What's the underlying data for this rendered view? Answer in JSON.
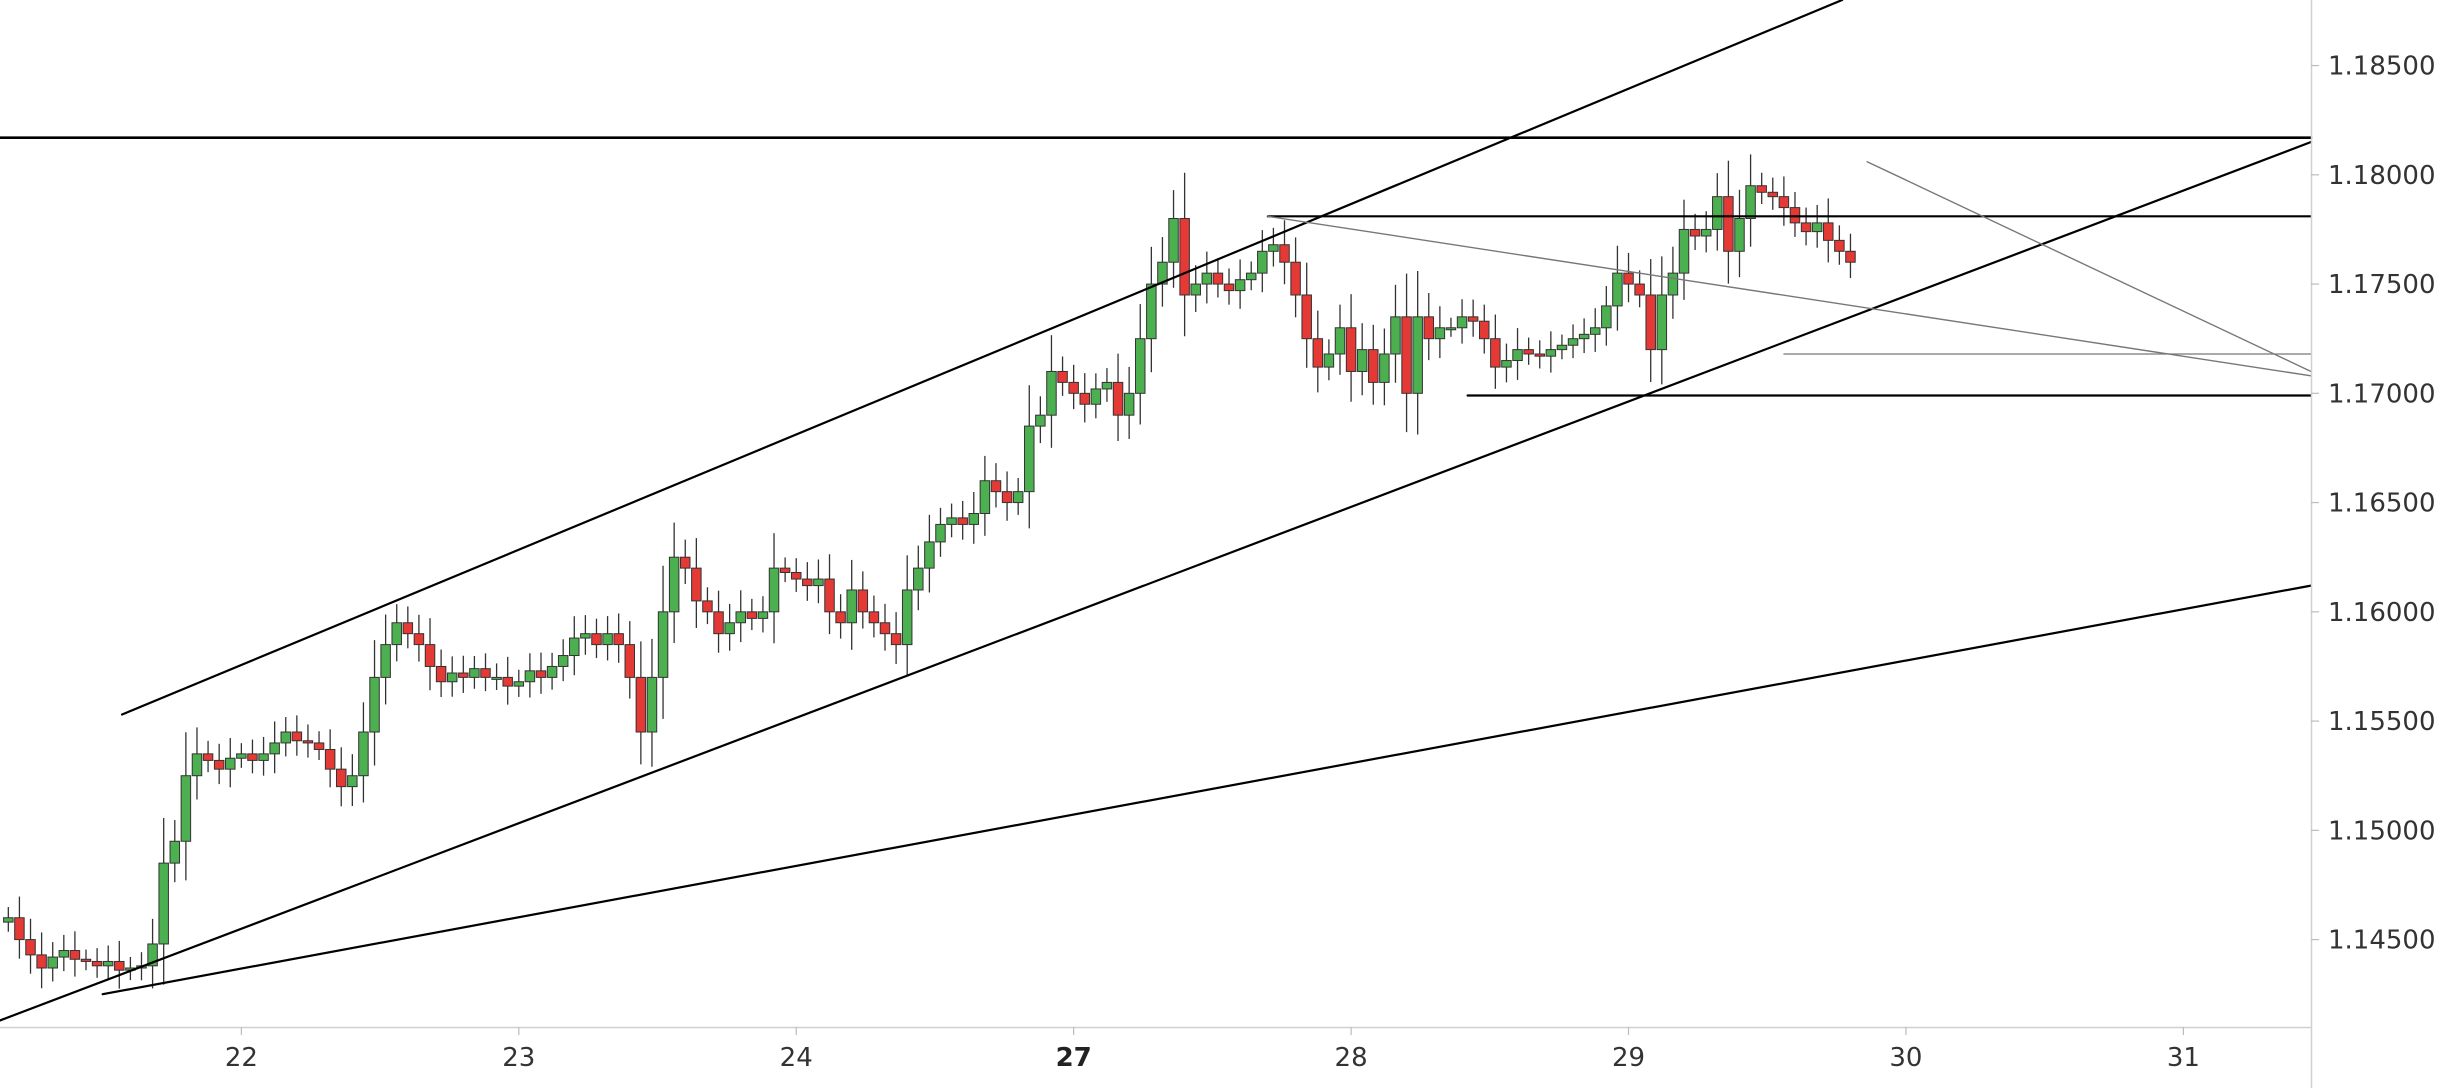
{
  "chart_data": {
    "type": "candlestick",
    "x_ticks": [
      {
        "label": "22",
        "pos": 1.0,
        "bold": false
      },
      {
        "label": "23",
        "pos": 2.0,
        "bold": false
      },
      {
        "label": "24",
        "pos": 3.0,
        "bold": false
      },
      {
        "label": "27",
        "pos": 4.0,
        "bold": true
      },
      {
        "label": "28",
        "pos": 5.0,
        "bold": false
      },
      {
        "label": "29",
        "pos": 6.0,
        "bold": false
      },
      {
        "label": "30",
        "pos": 7.0,
        "bold": false
      },
      {
        "label": "31",
        "pos": 8.0,
        "bold": false
      }
    ],
    "y_ticks": [
      "1.14500",
      "1.15000",
      "1.15500",
      "1.16000",
      "1.16500",
      "1.17000",
      "1.17500",
      "1.18000",
      "1.18500"
    ],
    "y_tick_values": [
      1.145,
      1.15,
      1.155,
      1.16,
      1.165,
      1.17,
      1.175,
      1.18,
      1.185
    ],
    "xlim": [
      0.13,
      8.46
    ],
    "ylim": [
      1.141,
      1.188
    ],
    "colors": {
      "up": "#4caf50",
      "down": "#e53935",
      "wick": "#333333",
      "line": "#000000",
      "thin_line": "#777777"
    },
    "candles": {
      "x0": 0.16,
      "step": 0.04,
      "open": [
        1.1458,
        1.146,
        1.145,
        1.1443,
        1.1437,
        1.1442,
        1.1445,
        1.1441,
        1.144,
        1.1438,
        1.144,
        1.1436,
        1.1437,
        1.1438,
        1.1448,
        1.1485,
        1.1495,
        1.1525,
        1.1535,
        1.1532,
        1.1528,
        1.1533,
        1.1535,
        1.1532,
        1.1535,
        1.154,
        1.1545,
        1.1541,
        1.154,
        1.1537,
        1.1528,
        1.152,
        1.1525,
        1.1545,
        1.157,
        1.1585,
        1.1595,
        1.159,
        1.1585,
        1.1575,
        1.1568,
        1.1572,
        1.157,
        1.1574,
        1.157,
        1.157,
        1.1566,
        1.1568,
        1.1573,
        1.157,
        1.1575,
        1.158,
        1.1588,
        1.159,
        1.1585,
        1.159,
        1.1585,
        1.157,
        1.1545,
        1.157,
        1.16,
        1.1625,
        1.162,
        1.1605,
        1.16,
        1.159,
        1.1595,
        1.16,
        1.1597,
        1.16,
        1.162,
        1.1618,
        1.1615,
        1.1612,
        1.1615,
        1.16,
        1.1595,
        1.161,
        1.16,
        1.1595,
        1.159,
        1.1585,
        1.161,
        1.162,
        1.1632,
        1.164,
        1.1643,
        1.164,
        1.1645,
        1.166,
        1.1655,
        1.165,
        1.1655,
        1.1685,
        1.169,
        1.171,
        1.1705,
        1.17,
        1.1695,
        1.1702,
        1.1705,
        1.169,
        1.17,
        1.1725,
        1.175,
        1.176,
        1.178,
        1.1745,
        1.175,
        1.1755,
        1.175,
        1.1747,
        1.1752,
        1.1755,
        1.1765,
        1.1768,
        1.176,
        1.1745,
        1.1725,
        1.1712,
        1.1718,
        1.173,
        1.171,
        1.172,
        1.1705,
        1.1718,
        1.1735,
        1.17,
        1.1735,
        1.1725,
        1.173,
        1.173,
        1.1735,
        1.1733,
        1.1725,
        1.1712,
        1.1715,
        1.172,
        1.1718,
        1.1717,
        1.172,
        1.1722,
        1.1725,
        1.1727,
        1.173,
        1.174,
        1.1755,
        1.175,
        1.1745,
        1.172,
        1.1745,
        1.1755,
        1.1775,
        1.1772,
        1.1775,
        1.179,
        1.1765,
        1.178,
        1.1795,
        1.1792,
        1.179,
        1.1785,
        1.1778,
        1.1774,
        1.1778,
        1.177,
        1.1765
      ],
      "close": [
        1.146,
        1.145,
        1.1443,
        1.1437,
        1.1442,
        1.1445,
        1.1441,
        1.144,
        1.1438,
        1.144,
        1.1436,
        1.1437,
        1.1438,
        1.1448,
        1.1485,
        1.1495,
        1.1525,
        1.1535,
        1.1532,
        1.1528,
        1.1533,
        1.1535,
        1.1532,
        1.1535,
        1.154,
        1.1545,
        1.1541,
        1.154,
        1.1537,
        1.1528,
        1.152,
        1.1525,
        1.1545,
        1.157,
        1.1585,
        1.1595,
        1.159,
        1.1585,
        1.1575,
        1.1568,
        1.1572,
        1.157,
        1.1574,
        1.157,
        1.157,
        1.1566,
        1.1568,
        1.1573,
        1.157,
        1.1575,
        1.158,
        1.1588,
        1.159,
        1.1585,
        1.159,
        1.1585,
        1.157,
        1.1545,
        1.157,
        1.16,
        1.1625,
        1.162,
        1.1605,
        1.16,
        1.159,
        1.1595,
        1.16,
        1.1597,
        1.16,
        1.162,
        1.1618,
        1.1615,
        1.1612,
        1.1615,
        1.16,
        1.1595,
        1.161,
        1.16,
        1.1595,
        1.159,
        1.1585,
        1.161,
        1.162,
        1.1632,
        1.164,
        1.1643,
        1.164,
        1.1645,
        1.166,
        1.1655,
        1.165,
        1.1655,
        1.1685,
        1.169,
        1.171,
        1.1705,
        1.17,
        1.1695,
        1.1702,
        1.1705,
        1.169,
        1.17,
        1.1725,
        1.175,
        1.176,
        1.178,
        1.1745,
        1.175,
        1.1755,
        1.175,
        1.1747,
        1.1752,
        1.1755,
        1.1765,
        1.1768,
        1.176,
        1.1745,
        1.1725,
        1.1712,
        1.1718,
        1.173,
        1.171,
        1.172,
        1.1705,
        1.1718,
        1.1735,
        1.17,
        1.1735,
        1.1725,
        1.173,
        1.173,
        1.1735,
        1.1733,
        1.1725,
        1.1712,
        1.1715,
        1.172,
        1.1718,
        1.1717,
        1.172,
        1.1722,
        1.1725,
        1.1727,
        1.173,
        1.174,
        1.1755,
        1.175,
        1.1745,
        1.172,
        1.1745,
        1.1755,
        1.1775,
        1.1772,
        1.1775,
        1.179,
        1.1765,
        1.178,
        1.1795,
        1.1792,
        1.179,
        1.1785,
        1.1778,
        1.1774,
        1.1778,
        1.177,
        1.1765,
        1.176
      ]
    },
    "lines": [
      {
        "name": "channel-upper-line",
        "p1": [
          0.57,
          1.1553
        ],
        "p2": [
          6.77,
          1.188
        ],
        "width": 2.2,
        "thin": false
      },
      {
        "name": "channel-lower-line",
        "p1": [
          0.13,
          1.1413
        ],
        "p2": [
          8.46,
          1.1815
        ],
        "width": 2.2,
        "thin": false
      },
      {
        "name": "long-trend-line",
        "p1": [
          0.5,
          1.1425
        ],
        "p2": [
          8.46,
          1.1612
        ],
        "width": 2.2,
        "thin": false
      },
      {
        "name": "resistance-line",
        "p1": [
          0.0,
          1.1817
        ],
        "p2": [
          8.46,
          1.1817
        ],
        "width": 2.6,
        "thin": false
      },
      {
        "name": "range-top-line",
        "p1": [
          4.7,
          1.1781
        ],
        "p2": [
          8.46,
          1.1781
        ],
        "width": 2.2,
        "thin": false
      },
      {
        "name": "range-bottom-line",
        "p1": [
          5.42,
          1.1699
        ],
        "p2": [
          8.46,
          1.1699
        ],
        "width": 2.2,
        "thin": false
      },
      {
        "name": "minor-support-line",
        "p1": [
          6.56,
          1.1718
        ],
        "p2": [
          8.46,
          1.1718
        ],
        "width": 1.2,
        "thin": true
      },
      {
        "name": "diagonal-resistance-line",
        "p1": [
          4.7,
          1.1781
        ],
        "p2": [
          8.46,
          1.1708
        ],
        "width": 1.4,
        "thin": true
      },
      {
        "name": "wedge-top-line",
        "p1": [
          6.86,
          1.1806
        ],
        "p2": [
          8.46,
          1.171
        ],
        "width": 1.4,
        "thin": true
      }
    ]
  }
}
